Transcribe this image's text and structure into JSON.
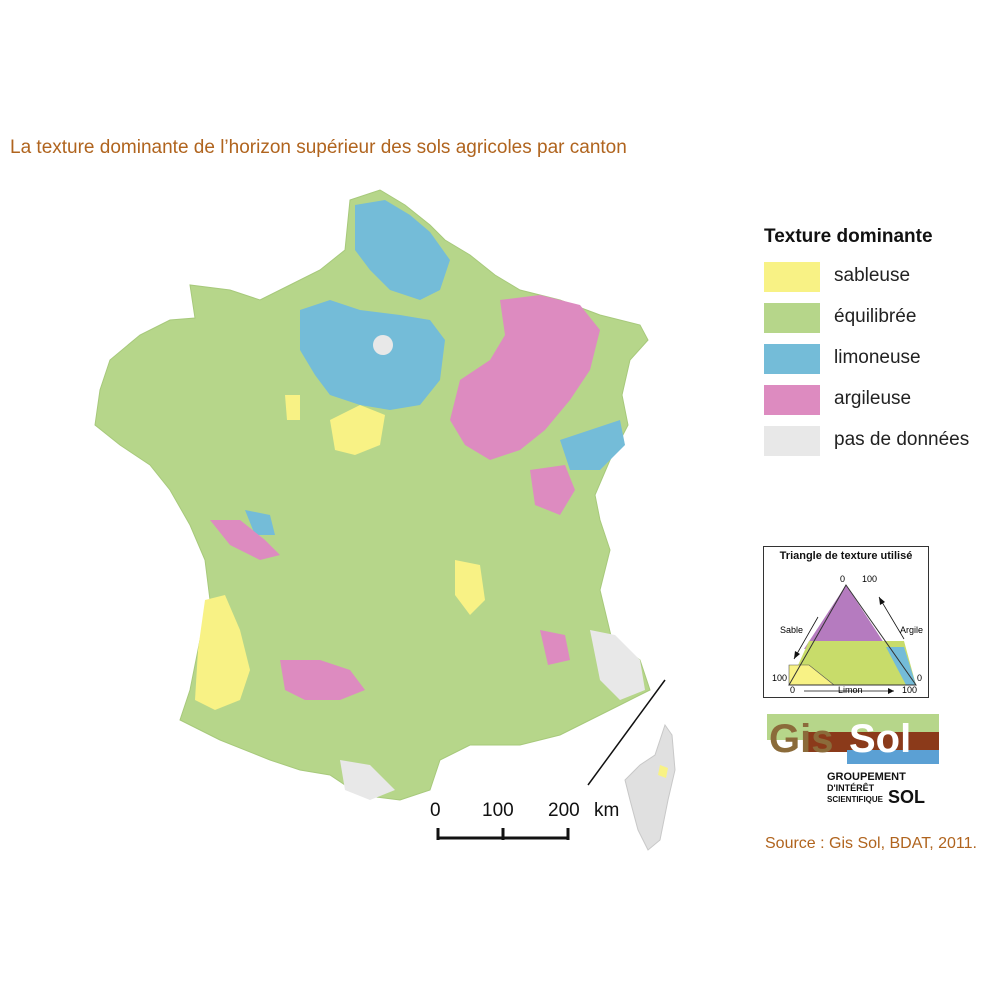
{
  "title": "La texture dominante de l’horizon supérieur des sols agricoles par canton",
  "legend": {
    "title": "Texture dominante",
    "items": [
      {
        "label": "sableuse",
        "color": "#f8f285"
      },
      {
        "label": "équilibrée",
        "color": "#b6d68a"
      },
      {
        "label": "limoneuse",
        "color": "#74bcd8"
      },
      {
        "label": "argileuse",
        "color": "#dd8bc0"
      },
      {
        "label": "pas de données",
        "color": "#e8e8e8"
      }
    ]
  },
  "triangle": {
    "title": "Triangle de texture utilisé",
    "top_left": "0",
    "top_right": "100",
    "left_side": "Sable",
    "right_side": "Argile",
    "bottom_left_100": "100",
    "bottom_left_0": "0",
    "bottom_right_0": "0",
    "bottom_right_100": "100",
    "bottom_axis": "Limon"
  },
  "logo": {
    "gis": "Gis",
    "sol": "Sol",
    "line1": "GROUPEMENT",
    "line2": "D'INTÉRÊT",
    "line3": "SCIENTIFIQUE",
    "line3_sol": "SOL"
  },
  "scale": {
    "t0": "0",
    "t100": "100",
    "t200": "200",
    "unit": "km"
  },
  "source": "Source : Gis Sol, BDAT, 2011."
}
